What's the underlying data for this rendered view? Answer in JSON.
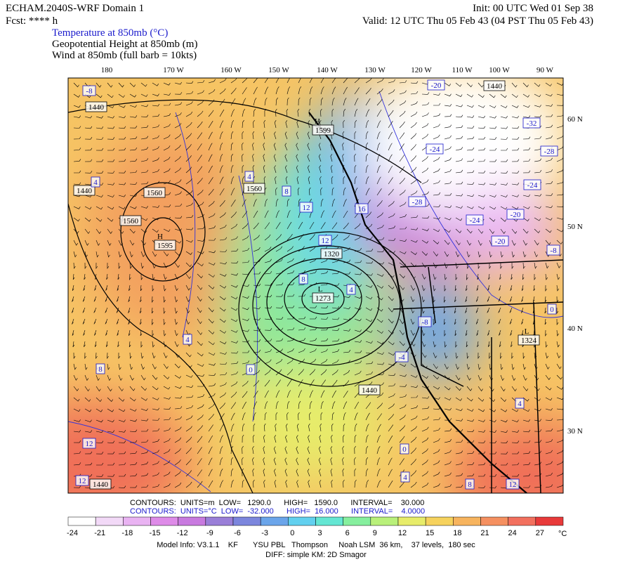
{
  "header": {
    "title": "ECHAM.2040S-WRF Domain 1",
    "forecast": "Fcst: **** h",
    "init": "Init: 00 UTC Wed 01 Sep 38",
    "valid": "Valid: 12 UTC Thu 05 Feb 43 (04 PST Thu 05 Feb 43)",
    "fields": [
      "Temperature at 850mb (°C)",
      "Geopotential Height at 850mb (m)",
      "Wind at 850mb (full barb = 10kts)"
    ]
  },
  "map": {
    "longitude_labels": [
      "180",
      "170 W",
      "160 W",
      "150 W",
      "140 W",
      "130 W",
      "120 W",
      "110 W",
      "100 W",
      "90 W"
    ],
    "latitude_labels": [
      "60 N",
      "50 N",
      "40 N",
      "30 N"
    ],
    "labels": [
      "-8",
      "1440",
      "1440",
      "4",
      "1560",
      "1560",
      "H",
      "1595",
      "H",
      "1599",
      "4",
      "1560",
      "8",
      "12",
      "12",
      "1320",
      "16",
      "L",
      "1273",
      "4",
      "8",
      "4",
      "8",
      "0",
      "1440",
      "-4",
      "-8",
      "L",
      "1324",
      "4",
      "0",
      "-8",
      "-20",
      "-20",
      "-24",
      "-28",
      "-24",
      "-28",
      "-32",
      "-24",
      "-20",
      "1440",
      "12",
      "12",
      "1440",
      "0",
      "4",
      "8",
      "12"
    ]
  },
  "footer": {
    "contours_height": "CONTOURS:  UNITS=m  LOW=   1290.0      HIGH=   1590.0      INTERVAL=    30.000",
    "contours_temperature": "CONTOURS:  UNITS=°C  LOW=  -32.000      HIGH=  16.000      INTERVAL=    4.0000",
    "colorbar": {
      "ticks": [
        -24,
        -21,
        -18,
        -15,
        -12,
        -9,
        -6,
        -3,
        0,
        3,
        6,
        9,
        12,
        15,
        18,
        21,
        24,
        27
      ],
      "colors": [
        "#ffffff",
        "#f2d9f7",
        "#e9b3f2",
        "#de8be8",
        "#c87adf",
        "#9a7fd8",
        "#7c86dd",
        "#6ba5ea",
        "#62d0ef",
        "#64e6d3",
        "#86ef9e",
        "#b9f07a",
        "#e7ec6a",
        "#f6d25d",
        "#f7b45e",
        "#f59060",
        "#f2705e",
        "#e83a3a"
      ],
      "unit": "°C"
    },
    "model_info": "Model Info: V3.1.1    KF       YSU PBL   Thompson     Noah LSM  36 km,    37 levels,  180 sec",
    "diff": "DIFF: simple KM: 2D Smagor"
  }
}
